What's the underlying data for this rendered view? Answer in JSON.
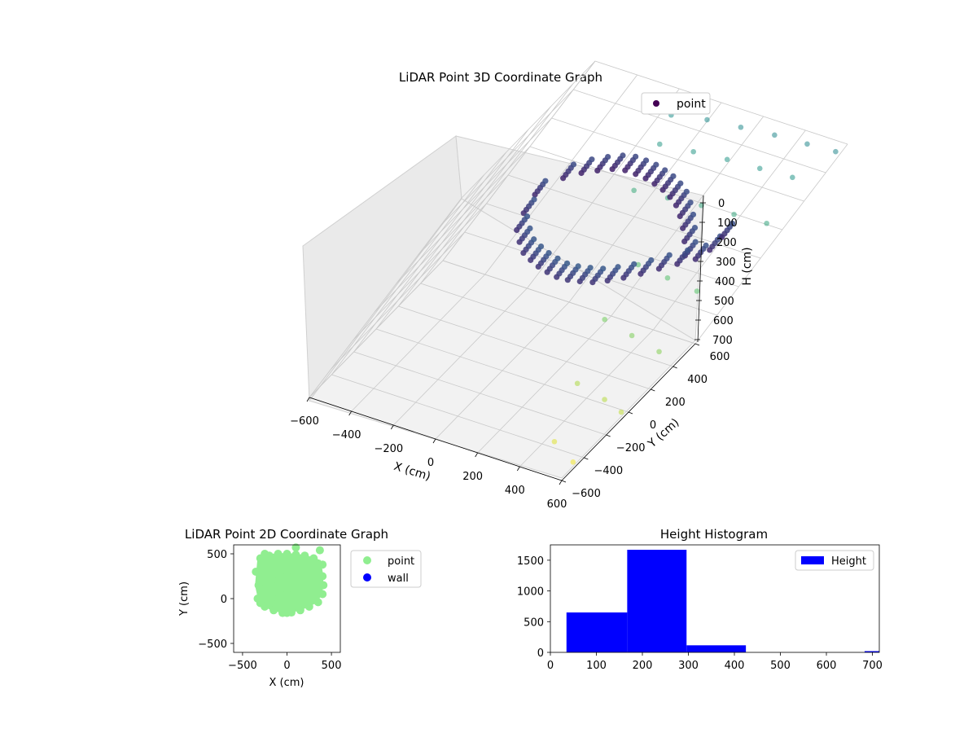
{
  "chart_data": [
    {
      "type": "scatter",
      "projection": "3d",
      "title": "LiDAR Point 3D Coordinate Graph",
      "xlabel": "X (cm)",
      "ylabel": "Y (cm)",
      "zlabel": "H (cm)",
      "xlim": [
        -600,
        600
      ],
      "ylim": [
        -600,
        600
      ],
      "zlim": [
        0,
        700
      ],
      "z_inverted": true,
      "xticks": [
        -600,
        -400,
        -200,
        0,
        200,
        400,
        600
      ],
      "yticks": [
        -600,
        -400,
        -200,
        0,
        200,
        400,
        600
      ],
      "zticks": [
        0,
        100,
        200,
        300,
        400,
        500,
        600,
        700
      ],
      "legend": {
        "placement": "top-right",
        "entries": [
          "point"
        ]
      },
      "grid": true,
      "colormap": "viridis (by height)",
      "series": [
        {
          "name": "point",
          "cluster_description": "dense arc of points at low height",
          "points": [
            [
              -350,
              250,
              210
            ],
            [
              -300,
              300,
              200
            ],
            [
              -250,
              340,
              195
            ],
            [
              -200,
              370,
              190
            ],
            [
              -150,
              390,
              190
            ],
            [
              -100,
              400,
              195
            ],
            [
              -50,
              405,
              200
            ],
            [
              0,
              400,
              205
            ],
            [
              50,
              390,
              210
            ],
            [
              100,
              370,
              215
            ],
            [
              150,
              340,
              220
            ],
            [
              200,
              300,
              230
            ],
            [
              250,
              250,
              240
            ],
            [
              300,
              190,
              250
            ],
            [
              350,
              120,
              260
            ],
            [
              -400,
              150,
              240
            ],
            [
              -380,
              50,
              260
            ],
            [
              -350,
              -30,
              280
            ],
            [
              -300,
              -80,
              290
            ],
            [
              -250,
              -120,
              300
            ],
            [
              -200,
              -140,
              305
            ],
            [
              -150,
              -155,
              310
            ],
            [
              -100,
              -160,
              315
            ],
            [
              -50,
              -160,
              320
            ],
            [
              0,
              -155,
              320
            ],
            [
              50,
              -150,
              315
            ],
            [
              100,
              -140,
              310
            ],
            [
              150,
              -120,
              300
            ],
            [
              200,
              -90,
              290
            ],
            [
              250,
              -50,
              280
            ],
            [
              300,
              0,
              270
            ],
            [
              350,
              60,
              265
            ],
            [
              400,
              120,
              260
            ],
            [
              420,
              200,
              255
            ],
            [
              420,
              300,
              250
            ]
          ],
          "sparse_points": [
            [
              -150,
              550,
              60
            ],
            [
              0,
              550,
              40
            ],
            [
              150,
              550,
              30
            ],
            [
              300,
              560,
              25
            ],
            [
              450,
              560,
              20
            ],
            [
              580,
              560,
              15
            ],
            [
              -100,
              450,
              110
            ],
            [
              50,
              450,
              100
            ],
            [
              200,
              460,
              95
            ],
            [
              350,
              460,
              90
            ],
            [
              500,
              460,
              85
            ],
            [
              -50,
              300,
              200
            ],
            [
              100,
              300,
              190
            ],
            [
              250,
              300,
              180
            ],
            [
              400,
              300,
              175
            ],
            [
              550,
              300,
              170
            ],
            [
              200,
              100,
              320
            ],
            [
              350,
              100,
              330
            ],
            [
              500,
              100,
              340
            ],
            [
              250,
              -100,
              420
            ],
            [
              400,
              -100,
              440
            ],
            [
              550,
              -100,
              460
            ],
            [
              350,
              -300,
              540
            ],
            [
              500,
              -300,
              560
            ],
            [
              600,
              -300,
              580
            ],
            [
              450,
              -500,
              640
            ],
            [
              580,
              -500,
              680
            ]
          ]
        }
      ]
    },
    {
      "type": "scatter",
      "title": "LiDAR Point 2D Coordinate Graph",
      "xlabel": "X (cm)",
      "ylabel": "Y (cm)",
      "xlim": [
        -600,
        600
      ],
      "ylim": [
        -600,
        600
      ],
      "xticks": [
        -500,
        0,
        500
      ],
      "yticks": [
        -500,
        0,
        500
      ],
      "legend": {
        "placement": "outside-right",
        "entries": [
          "point",
          "wall"
        ]
      },
      "grid": false,
      "series": [
        {
          "name": "point",
          "color": "#90ee90",
          "points": [
            [
              -300,
              450
            ],
            [
              -200,
              480
            ],
            [
              -100,
              500
            ],
            [
              0,
              500
            ],
            [
              100,
              490
            ],
            [
              200,
              480
            ],
            [
              300,
              450
            ],
            [
              400,
              380
            ],
            [
              -350,
              300
            ],
            [
              -320,
              150
            ],
            [
              -330,
              0
            ],
            [
              -300,
              -50
            ],
            [
              -250,
              -90
            ],
            [
              -150,
              -130
            ],
            [
              -50,
              -160
            ],
            [
              0,
              -160
            ],
            [
              50,
              -155
            ],
            [
              150,
              -130
            ],
            [
              250,
              -90
            ],
            [
              350,
              -40
            ],
            [
              400,
              50
            ],
            [
              410,
              150
            ],
            [
              400,
              250
            ],
            [
              -200,
              300
            ],
            [
              -100,
              200
            ],
            [
              0,
              300
            ],
            [
              100,
              200
            ],
            [
              200,
              300
            ],
            [
              0,
              100
            ],
            [
              -100,
              0
            ],
            [
              100,
              0
            ],
            [
              100,
              570
            ],
            [
              370,
              540
            ],
            [
              -250,
              500
            ]
          ]
        },
        {
          "name": "wall",
          "color": "#0000ff",
          "points": []
        }
      ]
    },
    {
      "type": "bar",
      "subtype": "histogram",
      "title": "Height Histogram",
      "xlabel": "",
      "ylabel": "",
      "xlim": [
        0,
        715
      ],
      "ylim": [
        0,
        1750
      ],
      "xticks": [
        0,
        100,
        200,
        300,
        400,
        500,
        600,
        700
      ],
      "yticks": [
        0,
        500,
        1000,
        1500
      ],
      "legend": {
        "placement": "top-right",
        "entries": [
          "Height"
        ]
      },
      "grid": false,
      "series": [
        {
          "name": "Height",
          "color": "#0000ff",
          "bins": [
            {
              "from": 35,
              "to": 167,
              "count": 650
            },
            {
              "from": 167,
              "to": 296,
              "count": 1670
            },
            {
              "from": 296,
              "to": 425,
              "count": 115
            },
            {
              "from": 425,
              "to": 554,
              "count": 0
            },
            {
              "from": 554,
              "to": 683,
              "count": 0
            },
            {
              "from": 683,
              "to": 812,
              "count": 20
            }
          ]
        }
      ]
    }
  ]
}
